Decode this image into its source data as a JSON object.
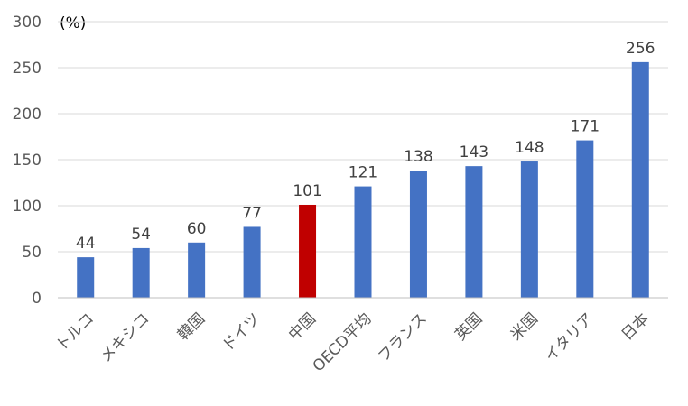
{
  "chart_data": {
    "type": "bar",
    "unit_label": "(%)",
    "categories": [
      "トルコ",
      "メキシコ",
      "韓国",
      "ドイツ",
      "中国",
      "OECD平均",
      "フランス",
      "英国",
      "米国",
      "イタリア",
      "日本"
    ],
    "values": [
      44,
      54,
      60,
      77,
      101,
      121,
      138,
      143,
      148,
      171,
      256
    ],
    "data_labels": [
      "44",
      "54",
      "60",
      "77",
      "101",
      "121",
      "138",
      "143",
      "148",
      "171",
      "256"
    ],
    "yticks": [
      "0",
      "50",
      "100",
      "150",
      "200",
      "250",
      "300"
    ],
    "ylim": [
      0,
      300
    ],
    "grid": true,
    "legend": "none",
    "colors": {
      "default_bar": "#4472c4",
      "highlight_bar": "#c00000",
      "highlight_category": "中国"
    }
  }
}
